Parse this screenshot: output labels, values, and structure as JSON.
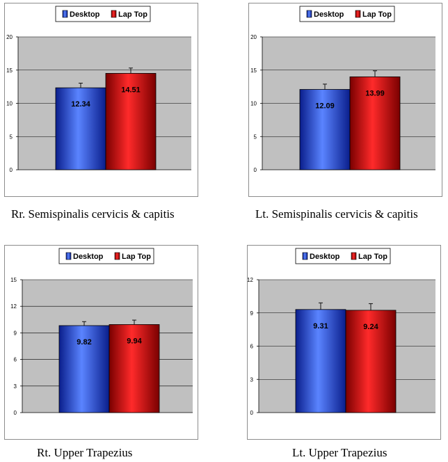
{
  "chart_data": [
    {
      "type": "bar",
      "categories": [
        ""
      ],
      "series": [
        {
          "name": "Desktop",
          "values": [
            12.34
          ],
          "labels": [
            "12.34"
          ],
          "errors": [
            0.7
          ]
        },
        {
          "name": "Lap Top",
          "values": [
            14.51
          ],
          "labels": [
            "14.51"
          ],
          "errors": [
            0.8
          ]
        }
      ],
      "yticks": [
        "0",
        "5",
        "10",
        "15",
        "20"
      ],
      "ylim": [
        0,
        20
      ],
      "grid": true,
      "legend": "top",
      "caption": "Rr. Semispinalis cervicis & capitis"
    },
    {
      "type": "bar",
      "categories": [
        ""
      ],
      "series": [
        {
          "name": "Desktop",
          "values": [
            12.09
          ],
          "labels": [
            "12.09"
          ],
          "errors": [
            0.8
          ]
        },
        {
          "name": "Lap Top",
          "values": [
            13.99
          ],
          "labels": [
            "13.99"
          ],
          "errors": [
            0.9
          ]
        }
      ],
      "yticks": [
        "0",
        "5",
        "10",
        "15",
        "20"
      ],
      "ylim": [
        0,
        20
      ],
      "grid": true,
      "legend": "top",
      "caption": "Lt. Semispinalis cervicis & capitis"
    },
    {
      "type": "bar",
      "categories": [
        ""
      ],
      "series": [
        {
          "name": "Desktop",
          "values": [
            9.82
          ],
          "labels": [
            "9.82"
          ],
          "errors": [
            0.45
          ]
        },
        {
          "name": "Lap Top",
          "values": [
            9.94
          ],
          "labels": [
            "9.94"
          ],
          "errors": [
            0.5
          ]
        }
      ],
      "yticks": [
        "0",
        "3",
        "6",
        "9",
        "12",
        "15"
      ],
      "ylim": [
        0,
        15
      ],
      "grid": true,
      "legend": "top",
      "caption": "Rt. Upper Trapezius"
    },
    {
      "type": "bar",
      "categories": [
        ""
      ],
      "series": [
        {
          "name": "Desktop",
          "values": [
            9.31
          ],
          "labels": [
            "9.31"
          ],
          "errors": [
            0.6
          ]
        },
        {
          "name": "Lap Top",
          "values": [
            9.24
          ],
          "labels": [
            "9.24"
          ],
          "errors": [
            0.6
          ]
        }
      ],
      "yticks": [
        "0",
        "3",
        "6",
        "9",
        "12"
      ],
      "ylim": [
        0,
        12
      ],
      "grid": true,
      "legend": "top",
      "caption": "Lt. Upper Trapezius"
    }
  ],
  "colors": {
    "desktop_light": "#5a84ff",
    "desktop_dark": "#0a1e8c",
    "laptop_light": "#ff2a2a",
    "laptop_dark": "#7a0000",
    "plot_bg": "#c0c0c0",
    "grid": "#000000"
  }
}
